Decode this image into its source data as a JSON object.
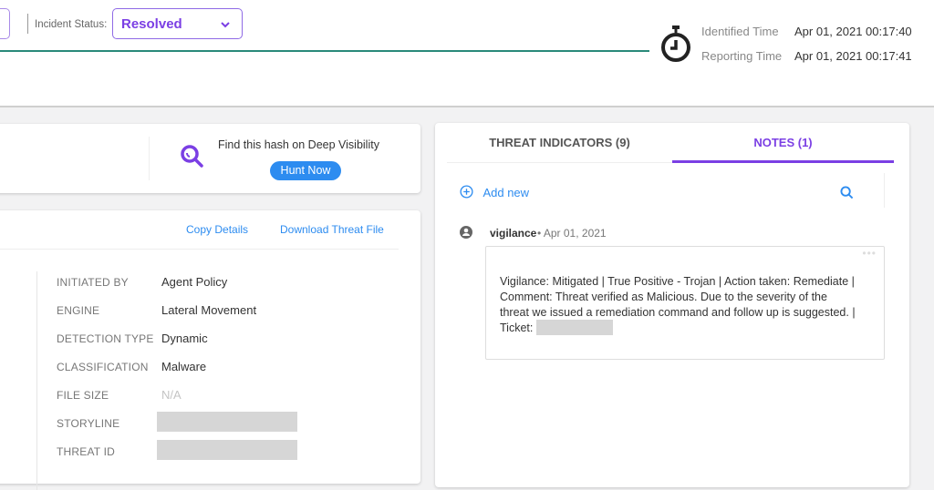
{
  "header": {
    "incident_status_label": "Incident Status:",
    "incident_status_value": "Resolved",
    "identified_time_label": "Identified Time",
    "identified_time_value": "Apr 01, 2021 00:17:40",
    "reporting_time_label": "Reporting Time",
    "reporting_time_value": "Apr 01, 2021 00:17:41"
  },
  "hunt": {
    "text": "Find this hash on Deep Visibility",
    "button": "Hunt Now"
  },
  "details": {
    "copy_label": "Copy Details",
    "download_label": "Download Threat File",
    "rows": [
      {
        "label": "INITIATED BY",
        "value": "Agent Policy"
      },
      {
        "label": "ENGINE",
        "value": "Lateral Movement"
      },
      {
        "label": "DETECTION TYPE",
        "value": "Dynamic"
      },
      {
        "label": "CLASSIFICATION",
        "value": "Malware"
      },
      {
        "label": "FILE SIZE",
        "value": "N/A"
      },
      {
        "label": "STORYLINE",
        "value": ""
      },
      {
        "label": "THREAT ID",
        "value": ""
      }
    ]
  },
  "tabs": [
    {
      "label": "THREAT INDICATORS (9)",
      "active": false
    },
    {
      "label": "NOTES (1)",
      "active": true
    }
  ],
  "notes": {
    "add_new": "Add new",
    "items": [
      {
        "author": "vigilance",
        "date": "• Apr 01, 2021",
        "lines": [
          "Vigilance: Mitigated | True Positive - Trojan | Action taken: Remediate |",
          "Comment: Threat verified as Malicious. Due to the severity of the",
          "threat we issued a remediation command and follow up is suggested. |",
          "Ticket:"
        ]
      }
    ]
  },
  "colors": {
    "accent": "#7b3fe4",
    "link": "#2d8cf0",
    "status_line": "#2a8a7a"
  }
}
